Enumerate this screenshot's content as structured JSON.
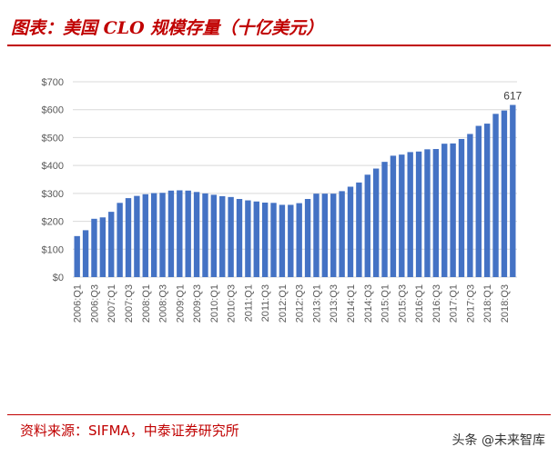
{
  "header": {
    "title": "图表：美国 CLO 规模存量（十亿美元）"
  },
  "footer": {
    "source": "资料来源：SIFMA，中泰证券研究所",
    "watermark": "头条 @未来智库"
  },
  "chart_data": {
    "type": "bar",
    "title": "",
    "xlabel": "",
    "ylabel": "",
    "ylim": [
      0,
      700
    ],
    "yticks": [
      "$0",
      "$100",
      "$200",
      "$300",
      "$400",
      "$500",
      "$600",
      "$700"
    ],
    "grid": true,
    "bar_color": "#4472c4",
    "categories": [
      "2006:Q1",
      "2006:Q2",
      "2006:Q3",
      "2006:Q4",
      "2007:Q1",
      "2007:Q2",
      "2007:Q3",
      "2007:Q4",
      "2008:Q1",
      "2008:Q2",
      "2008:Q3",
      "2008:Q4",
      "2009:Q1",
      "2009:Q2",
      "2009:Q3",
      "2009:Q4",
      "2010:Q1",
      "2010:Q2",
      "2010:Q3",
      "2010:Q4",
      "2011:Q1",
      "2011:Q2",
      "2011:Q3",
      "2011:Q4",
      "2012:Q1",
      "2012:Q2",
      "2012:Q3",
      "2012:Q4",
      "2013:Q1",
      "2013:Q2",
      "2013:Q3",
      "2013:Q4",
      "2014:Q1",
      "2014:Q2",
      "2014:Q3",
      "2014:Q4",
      "2015:Q1",
      "2015:Q2",
      "2015:Q3",
      "2015:Q4",
      "2016:Q1",
      "2016:Q2",
      "2016:Q3",
      "2016:Q4",
      "2017:Q1",
      "2017:Q2",
      "2017:Q3",
      "2017:Q4",
      "2018:Q1",
      "2018:Q2",
      "2018:Q3",
      "2018:Q4"
    ],
    "values": [
      147,
      168,
      209,
      214,
      234,
      266,
      283,
      291,
      297,
      301,
      302,
      310,
      311,
      310,
      305,
      300,
      295,
      290,
      287,
      280,
      275,
      271,
      267,
      266,
      259,
      259,
      265,
      280,
      299,
      299,
      299,
      308,
      324,
      339,
      367,
      389,
      413,
      435,
      439,
      448,
      450,
      458,
      459,
      478,
      479,
      495,
      513,
      542,
      550,
      585,
      597,
      617
    ],
    "data_labels": [
      {
        "category": "2018:Q4",
        "text": "617"
      }
    ]
  }
}
